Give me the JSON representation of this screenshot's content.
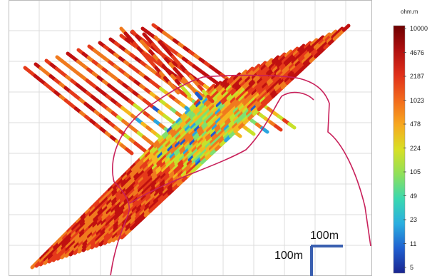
{
  "legend": {
    "unit": "ohm.m",
    "ticks": [
      "10000",
      "4676",
      "2187",
      "1023",
      "478",
      "224",
      "105",
      "49",
      "23",
      "11",
      "5"
    ],
    "colors": [
      "#7a0000",
      "#c01010",
      "#e53a1a",
      "#f07a1e",
      "#f5b81f",
      "#c8e12a",
      "#7fe070",
      "#39d2b5",
      "#2aa5e0",
      "#1f5bd0",
      "#1a2a9a"
    ]
  },
  "scale_bar": {
    "horizontal_label": "100m",
    "vertical_label": "100m",
    "color": "#3a5fb0"
  },
  "outline_color": "#c8205a"
}
